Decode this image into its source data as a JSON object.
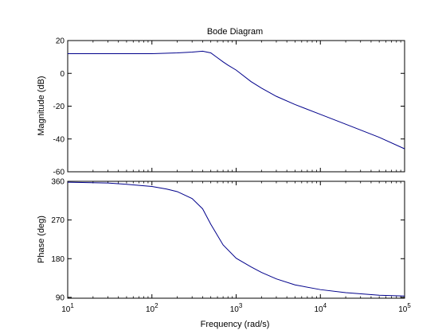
{
  "chart_data": {
    "type": "line",
    "title": "Bode Diagram",
    "xlabel": "Frequency  (rad/s)",
    "xscale": "log",
    "xlim": [
      10,
      100000
    ],
    "x_ticks": [
      {
        "value": 10,
        "base": "10",
        "exp": "1"
      },
      {
        "value": 100,
        "base": "10",
        "exp": "2"
      },
      {
        "value": 1000,
        "base": "10",
        "exp": "3"
      },
      {
        "value": 10000,
        "base": "10",
        "exp": "4"
      },
      {
        "value": 100000,
        "base": "10",
        "exp": "5"
      }
    ],
    "line_color": "#00008b",
    "subplots": [
      {
        "ylabel": "Magnitude (dB)",
        "ylim": [
          -60,
          20
        ],
        "yticks": [
          20,
          0,
          -20,
          -40,
          -60
        ],
        "series": [
          {
            "x": [
              10,
              30,
              100,
              200,
              300,
              400,
              500,
              600,
              700,
              800,
              1000,
              1500,
              2000,
              3000,
              5000,
              10000,
              20000,
              50000,
              100000
            ],
            "y": [
              12,
              12,
              12,
              12.5,
              13,
              13.5,
              12.5,
              9.5,
              7,
              5,
              2,
              -5,
              -9,
              -14,
              -19,
              -25,
              -31,
              -39,
              -46
            ]
          }
        ]
      },
      {
        "ylabel": "Phase (deg)",
        "ylim": [
          88,
          360
        ],
        "yticks": [
          360,
          270,
          180,
          90
        ],
        "series": [
          {
            "x": [
              10,
              30,
              50,
              100,
              150,
              200,
              300,
              400,
              500,
              700,
              1000,
              1500,
              2000,
              3000,
              5000,
              10000,
              20000,
              50000,
              100000
            ],
            "y": [
              358,
              356,
              353,
              348,
              342,
              336,
              320,
              296,
              260,
              212,
              181,
              161,
              148,
              133,
              119,
              108,
              101,
              95,
              93
            ]
          }
        ]
      }
    ]
  }
}
